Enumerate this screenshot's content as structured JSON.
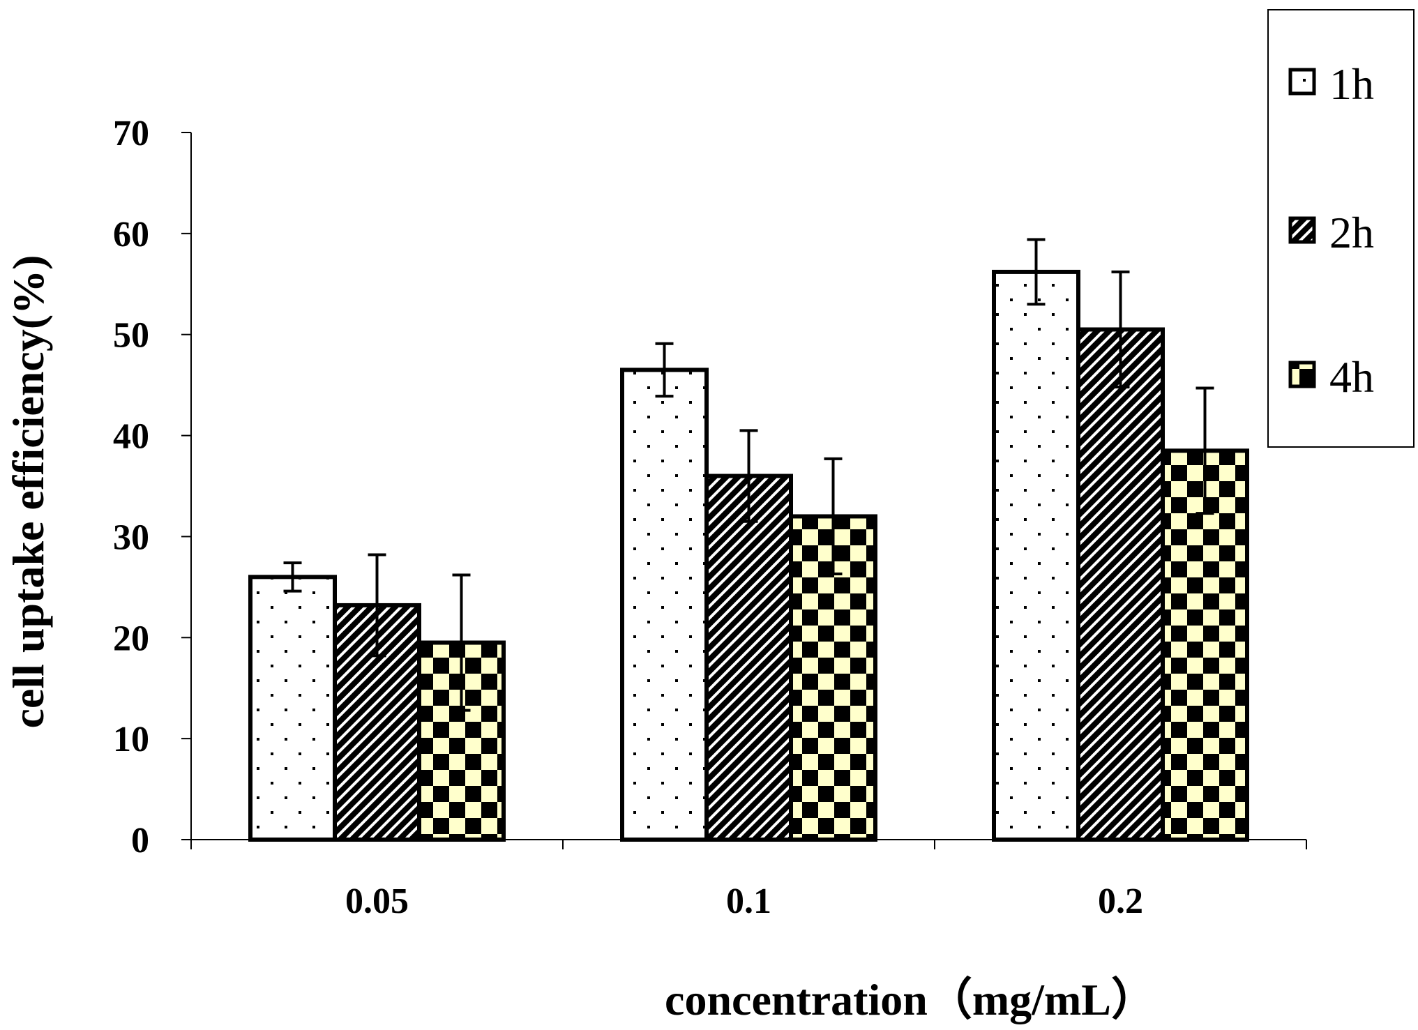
{
  "chart_data": {
    "type": "bar",
    "xlabel": "concentration（mg/mL）",
    "ylabel": "cell uptake efficiency(%)",
    "categories": [
      "0.05",
      "0.1",
      "0.2"
    ],
    "ylim": [
      0,
      70
    ],
    "yticks": [
      "0",
      "10",
      "20",
      "30",
      "40",
      "50",
      "60",
      "70"
    ],
    "grid": false,
    "legend_position": "top-right",
    "series": [
      {
        "name": "1h",
        "pattern": "dots",
        "values": [
          26.0,
          46.5,
          56.2
        ],
        "errors": [
          1.4,
          2.6,
          3.2
        ]
      },
      {
        "name": "2h",
        "pattern": "diagonal-hatch",
        "values": [
          23.2,
          36.0,
          50.5
        ],
        "errors": [
          5.0,
          4.5,
          5.7
        ]
      },
      {
        "name": "4h",
        "pattern": "checkerboard",
        "values": [
          19.5,
          32.0,
          38.5
        ],
        "errors": [
          6.7,
          5.7,
          6.2
        ]
      }
    ]
  },
  "colors": {
    "axis": "#000000",
    "bar_outline": "#000000",
    "dots_bg": "#ffffff",
    "hatch_bg": "#000000",
    "hatch_line": "#ffffff",
    "checker_dark": "#000000",
    "checker_light": "#ffffcc"
  }
}
